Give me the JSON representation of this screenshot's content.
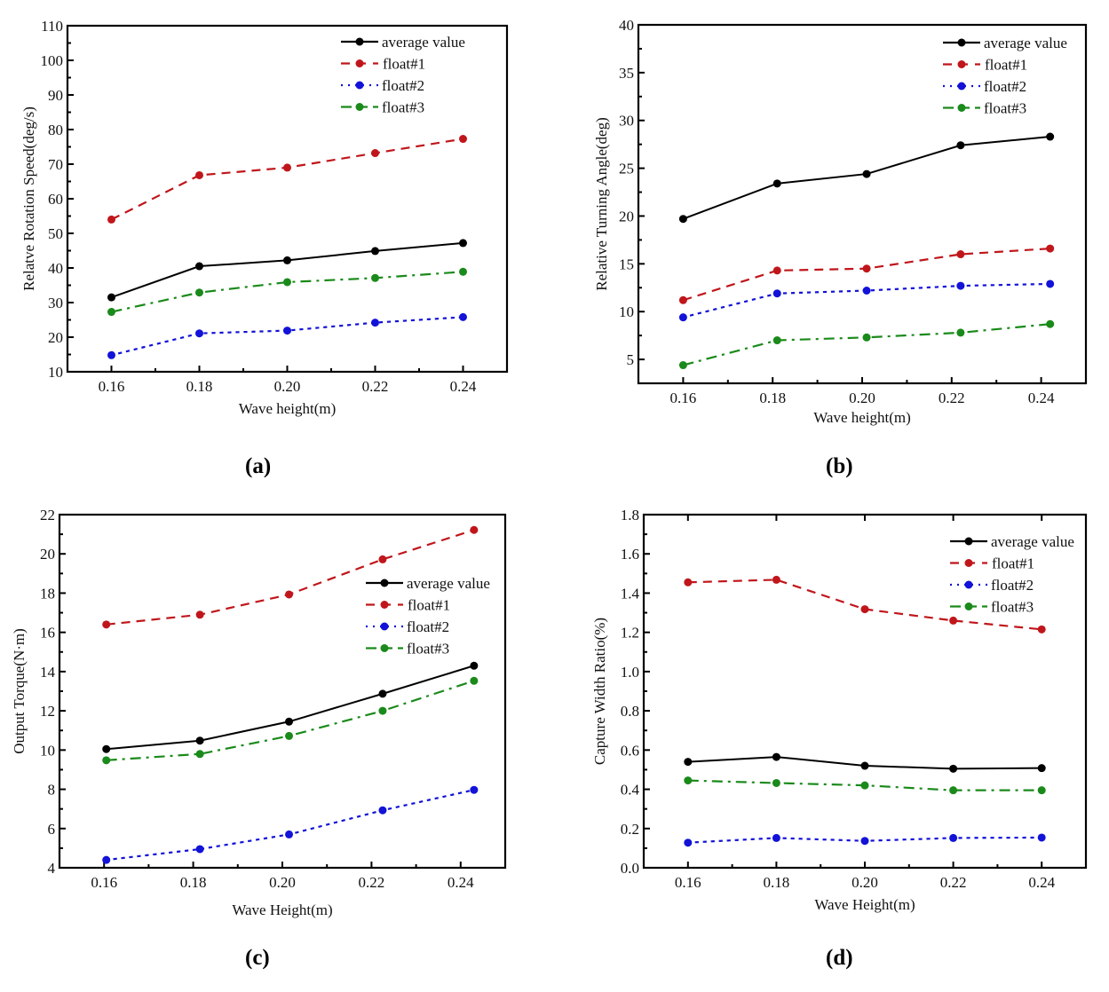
{
  "figure": {
    "captions": [
      "(a)",
      "(b)",
      "(c)",
      "(d)"
    ]
  },
  "colors": {
    "average": "#000000",
    "float1": "#c0161b",
    "float2": "#1212d8",
    "float3": "#1a8a1a",
    "frame": "#000000"
  },
  "chart_data": [
    {
      "id": "a",
      "type": "line",
      "title": "",
      "xlabel": "Wave height(m)",
      "ylabel": "Relatve Rotation Speed(deg/s)",
      "xlim": [
        0.15,
        0.25
      ],
      "ylim": [
        10,
        110
      ],
      "xticks": [
        "0.16",
        "0.18",
        "0.20",
        "0.22",
        "0.24"
      ],
      "xtick_values": [
        0.16,
        0.18,
        0.2,
        0.22,
        0.24
      ],
      "yticks": [
        "10",
        "20",
        "30",
        "40",
        "50",
        "60",
        "70",
        "80",
        "90",
        "100",
        "110"
      ],
      "ytick_values": [
        10,
        20,
        30,
        40,
        50,
        60,
        70,
        80,
        90,
        100,
        110
      ],
      "grid": false,
      "legend_position": "top-right",
      "series": [
        {
          "name": "average value",
          "style": "solid",
          "color_key": "average",
          "x": [
            0.16,
            0.18,
            0.2,
            0.22,
            0.24
          ],
          "values": [
            31.5,
            40.5,
            42.2,
            44.9,
            47.2
          ]
        },
        {
          "name": "float#1",
          "style": "dash",
          "color_key": "float1",
          "x": [
            0.16,
            0.18,
            0.2,
            0.22,
            0.24
          ],
          "values": [
            54.0,
            66.8,
            69.0,
            73.2,
            77.3
          ]
        },
        {
          "name": "float#2",
          "style": "dot",
          "color_key": "float2",
          "x": [
            0.16,
            0.18,
            0.2,
            0.22,
            0.24
          ],
          "values": [
            14.8,
            21.1,
            21.9,
            24.2,
            25.8
          ]
        },
        {
          "name": "float#3",
          "style": "dashdot",
          "color_key": "float3",
          "x": [
            0.16,
            0.18,
            0.2,
            0.22,
            0.24
          ],
          "values": [
            27.3,
            32.9,
            35.9,
            37.1,
            38.9
          ]
        }
      ]
    },
    {
      "id": "b",
      "type": "line",
      "title": "",
      "xlabel": "Wave height(m)",
      "ylabel": "Relative Turning Angle(deg)",
      "xlim": [
        0.15,
        0.25
      ],
      "ylim": [
        2.5,
        40
      ],
      "xticks": [
        "0.16",
        "0.18",
        "0.20",
        "0.22",
        "0.24"
      ],
      "xtick_values": [
        0.16,
        0.18,
        0.2,
        0.22,
        0.24
      ],
      "yticks": [
        "5",
        "10",
        "15",
        "20",
        "25",
        "30",
        "35",
        "40"
      ],
      "ytick_values": [
        5,
        10,
        15,
        20,
        25,
        30,
        35,
        40
      ],
      "grid": false,
      "legend_position": "top-right",
      "series": [
        {
          "name": "average value",
          "style": "solid",
          "color_key": "average",
          "x": [
            0.16,
            0.181,
            0.201,
            0.222,
            0.242
          ],
          "values": [
            19.7,
            23.4,
            24.4,
            27.4,
            28.3
          ]
        },
        {
          "name": "float#1",
          "style": "dash",
          "color_key": "float1",
          "x": [
            0.16,
            0.181,
            0.201,
            0.222,
            0.242
          ],
          "values": [
            11.2,
            14.3,
            14.5,
            16.0,
            16.6
          ]
        },
        {
          "name": "float#2",
          "style": "dot",
          "color_key": "float2",
          "x": [
            0.16,
            0.181,
            0.201,
            0.222,
            0.242
          ],
          "values": [
            9.4,
            11.9,
            12.2,
            12.7,
            12.9
          ]
        },
        {
          "name": "float#3",
          "style": "dashdot",
          "color_key": "float3",
          "x": [
            0.16,
            0.181,
            0.201,
            0.222,
            0.242
          ],
          "values": [
            4.4,
            7.0,
            7.3,
            7.8,
            8.7
          ]
        }
      ]
    },
    {
      "id": "c",
      "type": "line",
      "title": "",
      "xlabel": "Wave Height(m)",
      "ylabel": "Output Torque(N·m)",
      "xlim": [
        0.15,
        0.25
      ],
      "ylim": [
        4,
        22
      ],
      "xticks": [
        "0.16",
        "0.18",
        "0.20",
        "0.22",
        "0.24"
      ],
      "xtick_values": [
        0.16,
        0.18,
        0.2,
        0.22,
        0.24
      ],
      "yticks": [
        "4",
        "6",
        "8",
        "10",
        "12",
        "14",
        "16",
        "18",
        "20",
        "22"
      ],
      "ytick_values": [
        4,
        6,
        8,
        10,
        12,
        14,
        16,
        18,
        20,
        22
      ],
      "grid": false,
      "legend_position": "center-right",
      "series": [
        {
          "name": "average value",
          "style": "solid",
          "color_key": "average",
          "x": [
            0.1605,
            0.1815,
            0.2015,
            0.2225,
            0.243
          ],
          "values": [
            10.05,
            10.48,
            11.45,
            12.87,
            14.3
          ]
        },
        {
          "name": "float#1",
          "style": "dash",
          "color_key": "float1",
          "x": [
            0.1605,
            0.1815,
            0.2015,
            0.2225,
            0.243
          ],
          "values": [
            16.4,
            16.9,
            17.93,
            19.72,
            21.22
          ]
        },
        {
          "name": "float#2",
          "style": "dot",
          "color_key": "float2",
          "x": [
            0.1605,
            0.1815,
            0.2015,
            0.2225,
            0.243
          ],
          "values": [
            4.4,
            4.95,
            5.7,
            6.93,
            7.97
          ]
        },
        {
          "name": "float#3",
          "style": "dashdot",
          "color_key": "float3",
          "x": [
            0.1605,
            0.1815,
            0.2015,
            0.2225,
            0.243
          ],
          "values": [
            9.48,
            9.8,
            10.72,
            12.0,
            13.53
          ]
        }
      ]
    },
    {
      "id": "d",
      "type": "line",
      "title": "",
      "xlabel": "Wave Height(m)",
      "ylabel": "Capture Width Ratio(%)",
      "xlim": [
        0.15,
        0.25
      ],
      "ylim": [
        0.0,
        1.8
      ],
      "xticks": [
        "0.16",
        "0.18",
        "0.20",
        "0.22",
        "0.24"
      ],
      "xtick_values": [
        0.16,
        0.18,
        0.2,
        0.22,
        0.24
      ],
      "yticks": [
        "0.0",
        "0.2",
        "0.4",
        "0.6",
        "0.8",
        "1.0",
        "1.2",
        "1.4",
        "1.6",
        "1.8"
      ],
      "ytick_values": [
        0.0,
        0.2,
        0.4,
        0.6,
        0.8,
        1.0,
        1.2,
        1.4,
        1.6,
        1.8
      ],
      "grid": false,
      "legend_position": "top-right",
      "series": [
        {
          "name": "average value",
          "style": "solid",
          "color_key": "average",
          "x": [
            0.16,
            0.18,
            0.2,
            0.22,
            0.24
          ],
          "values": [
            0.54,
            0.565,
            0.52,
            0.505,
            0.508
          ]
        },
        {
          "name": "float#1",
          "style": "dash",
          "color_key": "float1",
          "x": [
            0.16,
            0.18,
            0.2,
            0.22,
            0.24
          ],
          "values": [
            1.455,
            1.468,
            1.318,
            1.26,
            1.215
          ]
        },
        {
          "name": "float#2",
          "style": "dot",
          "color_key": "float2",
          "x": [
            0.16,
            0.18,
            0.2,
            0.22,
            0.24
          ],
          "values": [
            0.128,
            0.152,
            0.137,
            0.152,
            0.154
          ]
        },
        {
          "name": "float#3",
          "style": "dashdot",
          "color_key": "float3",
          "x": [
            0.16,
            0.18,
            0.2,
            0.22,
            0.24
          ],
          "values": [
            0.445,
            0.432,
            0.42,
            0.395,
            0.395
          ]
        }
      ]
    }
  ]
}
